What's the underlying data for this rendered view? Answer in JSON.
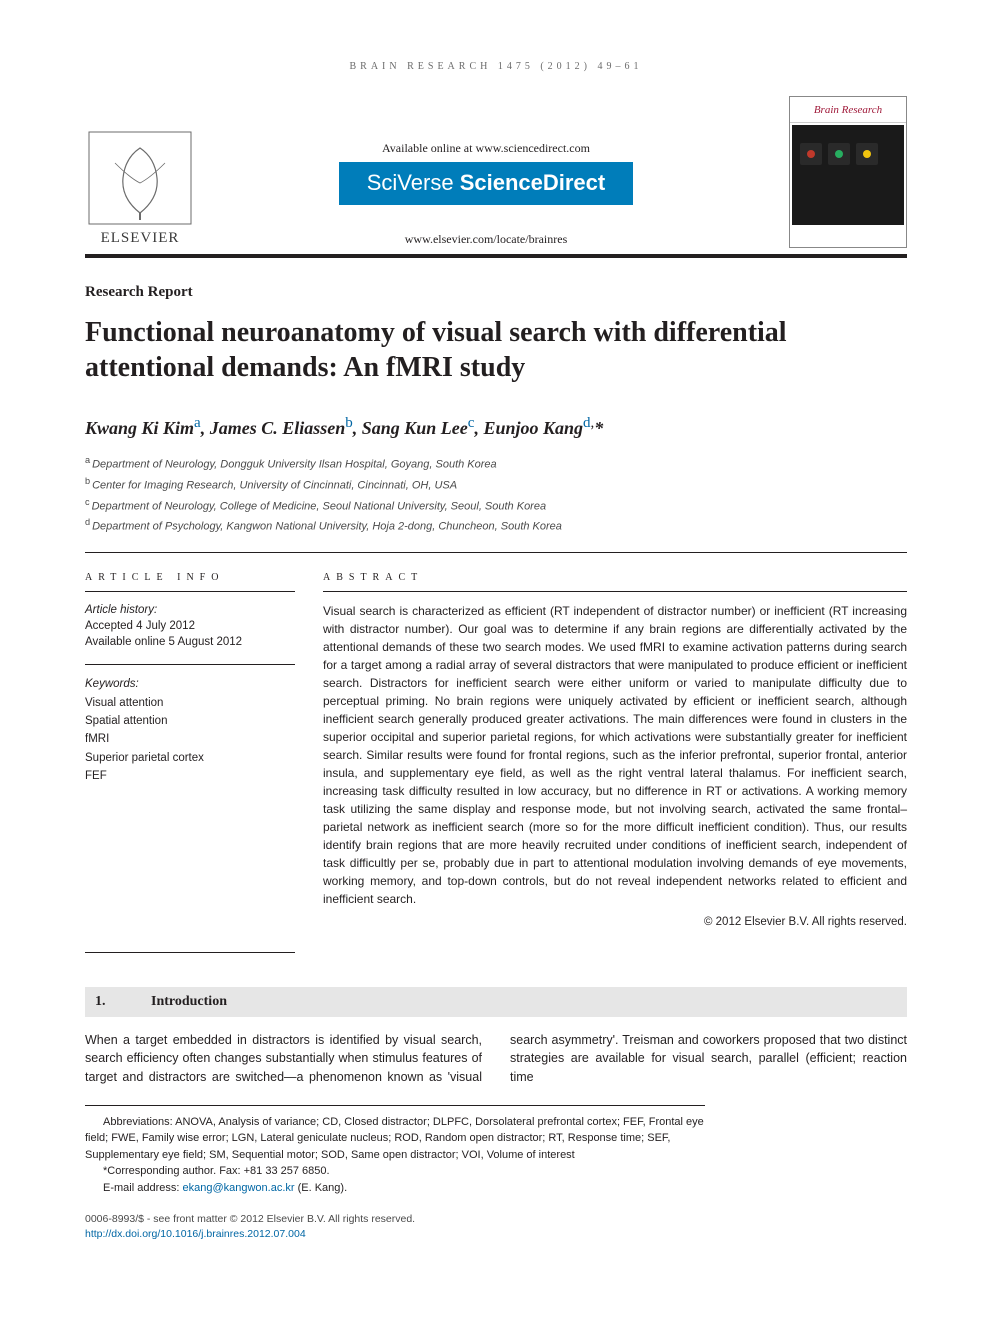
{
  "running_head": "BRAIN RESEARCH 1475 (2012) 49–61",
  "masthead": {
    "available": "Available online at www.sciencedirect.com",
    "brand_a": "SciVerse",
    "brand_b": "ScienceDirect",
    "brand_bg": "#007dba",
    "journal_url": "www.elsevier.com/locate/brainres",
    "journal_cover_title": "Brain Research",
    "elsevier_label": "ELSEVIER"
  },
  "article": {
    "type": "Research Report",
    "title": "Functional neuroanatomy of visual search with differential attentional demands: An fMRI study",
    "authors_html": "Kwang Ki Kim<sup><a>a</a></sup>, James C. Eliassen<sup><a>b</a></sup>, Sang Kun Lee<sup><a>c</a></sup>, Eunjoo Kang<sup><a>d</a>,</sup>*",
    "affiliations": [
      {
        "sup": "a",
        "text": "Department of Neurology, Dongguk University Ilsan Hospital, Goyang, South Korea"
      },
      {
        "sup": "b",
        "text": "Center for Imaging Research, University of Cincinnati, Cincinnati, OH, USA"
      },
      {
        "sup": "c",
        "text": "Department of Neurology, College of Medicine, Seoul National University, Seoul, South Korea"
      },
      {
        "sup": "d",
        "text": "Department of Psychology, Kangwon National University, Hoja 2-dong, Chuncheon, South Korea"
      }
    ]
  },
  "info": {
    "head": "ARTICLE INFO",
    "history_label": "Article history:",
    "accepted": "Accepted 4 July 2012",
    "online": "Available online 5 August 2012",
    "keywords_label": "Keywords:",
    "keywords": [
      "Visual attention",
      "Spatial attention",
      "fMRI",
      "Superior parietal cortex",
      "FEF"
    ]
  },
  "abstract": {
    "head": "ABSTRACT",
    "text": "Visual search is characterized as efficient (RT independent of distractor number) or inefficient (RT increasing with distractor number). Our goal was to determine if any brain regions are differentially activated by the attentional demands of these two search modes. We used fMRI to examine activation patterns during search for a target among a radial array of several distractors that were manipulated to produce efficient or inefficient search. Distractors for inefficient search were either uniform or varied to manipulate difficulty due to perceptual priming. No brain regions were uniquely activated by efficient or inefficient search, although inefficient search generally produced greater activations. The main differences were found in clusters in the superior occipital and superior parietal regions, for which activations were substantially greater for inefficient search. Similar results were found for frontal regions, such as the inferior prefrontal, superior frontal, anterior insula, and supplementary eye field, as well as the right ventral lateral thalamus. For inefficient search, increasing task difficulty resulted in low accuracy, but no difference in RT or activations. A working memory task utilizing the same display and response mode, but not involving search, activated the same frontal–parietal network as inefficient search (more so for the more difficult inefficient condition). Thus, our results identify brain regions that are more heavily recruited under conditions of inefficient search, independent of task difficultly per se, probably due in part to attentional modulation involving demands of eye movements, working memory, and top-down controls, but do not reveal independent networks related to efficient and inefficient search.",
    "copyright": "© 2012 Elsevier B.V. All rights reserved."
  },
  "intro": {
    "num": "1.",
    "title": "Introduction",
    "body_col1": "When a target embedded in distractors is identified by visual search, search efficiency often changes substantially when",
    "body_col2": "stimulus features of target and distractors are switched—a phenomenon known as 'visual search asymmetry'. Treisman and coworkers proposed that two distinct strategies are available for visual search, parallel (efficient; reaction time"
  },
  "footnotes": {
    "abbrev": "Abbreviations: ANOVA,  Analysis of variance; CD,  Closed distractor; DLPFC,  Dorsolateral prefrontal cortex; FEF,  Frontal eye field; FWE,  Family wise error; LGN,  Lateral geniculate nucleus; ROD,  Random open distractor; RT,  Response time; SEF,  Supplementary eye field; SM,  Sequential motor; SOD,  Same open distractor; VOI,  Volume of interest",
    "corr": "*Corresponding author. Fax: +81 33 257 6850.",
    "email_label": "E-mail address: ",
    "email": "ekang@kangwon.ac.kr",
    "email_suffix": " (E. Kang)."
  },
  "footer": {
    "line1": "0006-8993/$ - see front matter © 2012 Elsevier B.V. All rights reserved.",
    "doi": "http://dx.doi.org/10.1016/j.brainres.2012.07.004"
  },
  "colors": {
    "text": "#231f20",
    "link": "#0066a4",
    "section_bg": "#e6e6e6"
  }
}
